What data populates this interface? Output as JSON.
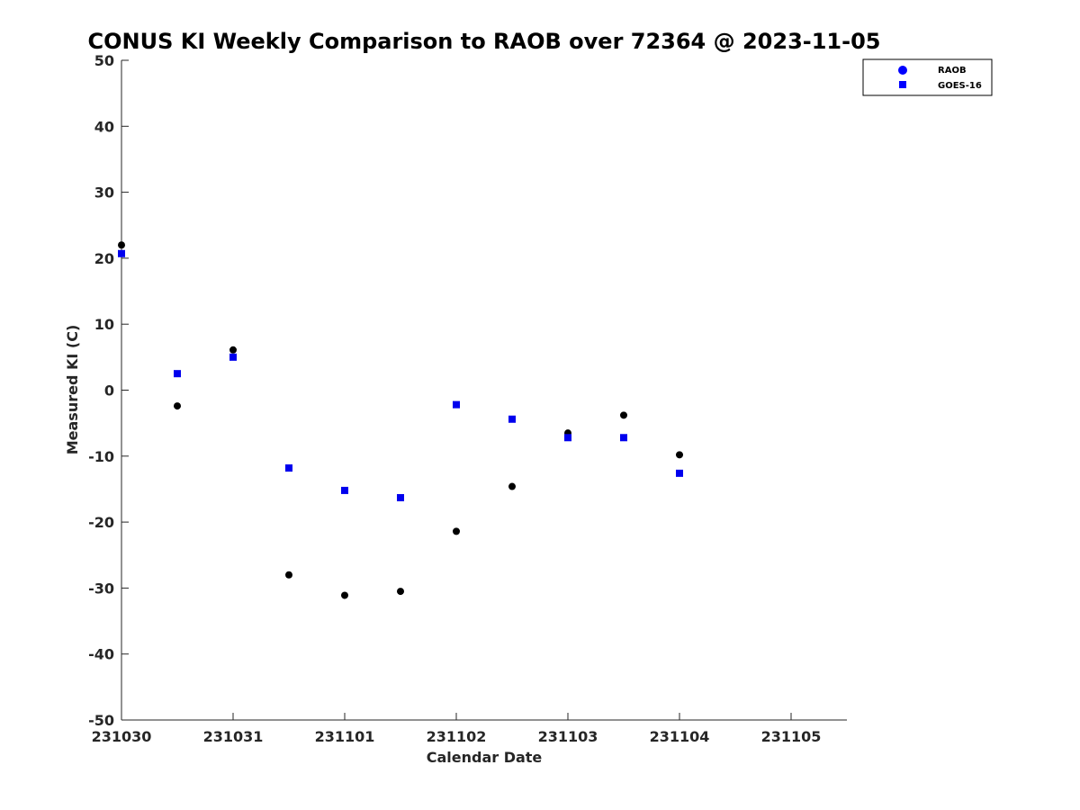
{
  "chart_data": {
    "type": "scatter",
    "title": "CONUS KI Weekly Comparison to RAOB over 72364 @ 2023-11-05",
    "xlabel": "Calendar Date",
    "ylabel": "Measured KI (C)",
    "xlim": [
      0,
      6.5
    ],
    "ylim": [
      -50,
      50
    ],
    "x_ticks": [
      0,
      1,
      2,
      3,
      4,
      5,
      6
    ],
    "x_tick_labels": [
      "231030",
      "231031",
      "231101",
      "231102",
      "231103",
      "231104",
      "231105"
    ],
    "y_ticks": [
      50,
      40,
      30,
      20,
      10,
      0,
      -10,
      -20,
      -30,
      -40,
      -50
    ],
    "y_tick_labels": [
      "50",
      "40",
      "30",
      "20",
      "10",
      "0",
      "-10",
      "-20",
      "-30",
      "-40",
      "-50"
    ],
    "x_unit_note": "days since 231030",
    "legend_position": "top-right",
    "series": [
      {
        "name": "RAOB",
        "marker": "circle",
        "color": "#000000",
        "legend_color": "#0000ff",
        "x": [
          0,
          0.5,
          1,
          1.5,
          2,
          2.5,
          3,
          3.5,
          4,
          4.5,
          5
        ],
        "values": [
          22.0,
          -2.4,
          6.1,
          -28.0,
          -31.1,
          -30.5,
          -21.4,
          -14.6,
          -6.5,
          -3.8,
          -9.8
        ]
      },
      {
        "name": "GOES-16",
        "marker": "square",
        "color": "#0000ee",
        "legend_color": "#0000ff",
        "x": [
          0,
          0.5,
          1,
          1.5,
          2,
          2.5,
          3,
          3.5,
          4,
          4.5,
          5
        ],
        "values": [
          20.7,
          2.5,
          5.0,
          -11.8,
          -15.2,
          -16.3,
          -2.2,
          -4.4,
          -7.2,
          -7.2,
          -12.6
        ]
      }
    ]
  }
}
